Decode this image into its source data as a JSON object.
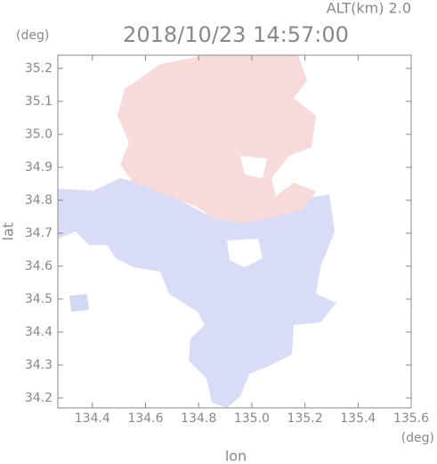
{
  "chart_data": {
    "type": "radar-map",
    "subtitle": "ALT(km) 2.0",
    "title": "2018/10/23 14:57:00",
    "xlabel": "lon",
    "ylabel": "lat",
    "x_unit": "(deg)",
    "y_unit": "(deg)",
    "xlim": [
      134.27,
      135.6
    ],
    "ylim": [
      34.17,
      35.24
    ],
    "xticks": [
      134.4,
      134.6,
      134.8,
      {
        "value": 135,
        "label": "135.0"
      },
      135.2,
      135.4,
      135.6
    ],
    "yticks": [
      34.2,
      34.3,
      34.4,
      34.5,
      34.6,
      34.7,
      34.8,
      34.9,
      {
        "value": 35,
        "label": "35.0"
      },
      35.1,
      35.2
    ]
  }
}
